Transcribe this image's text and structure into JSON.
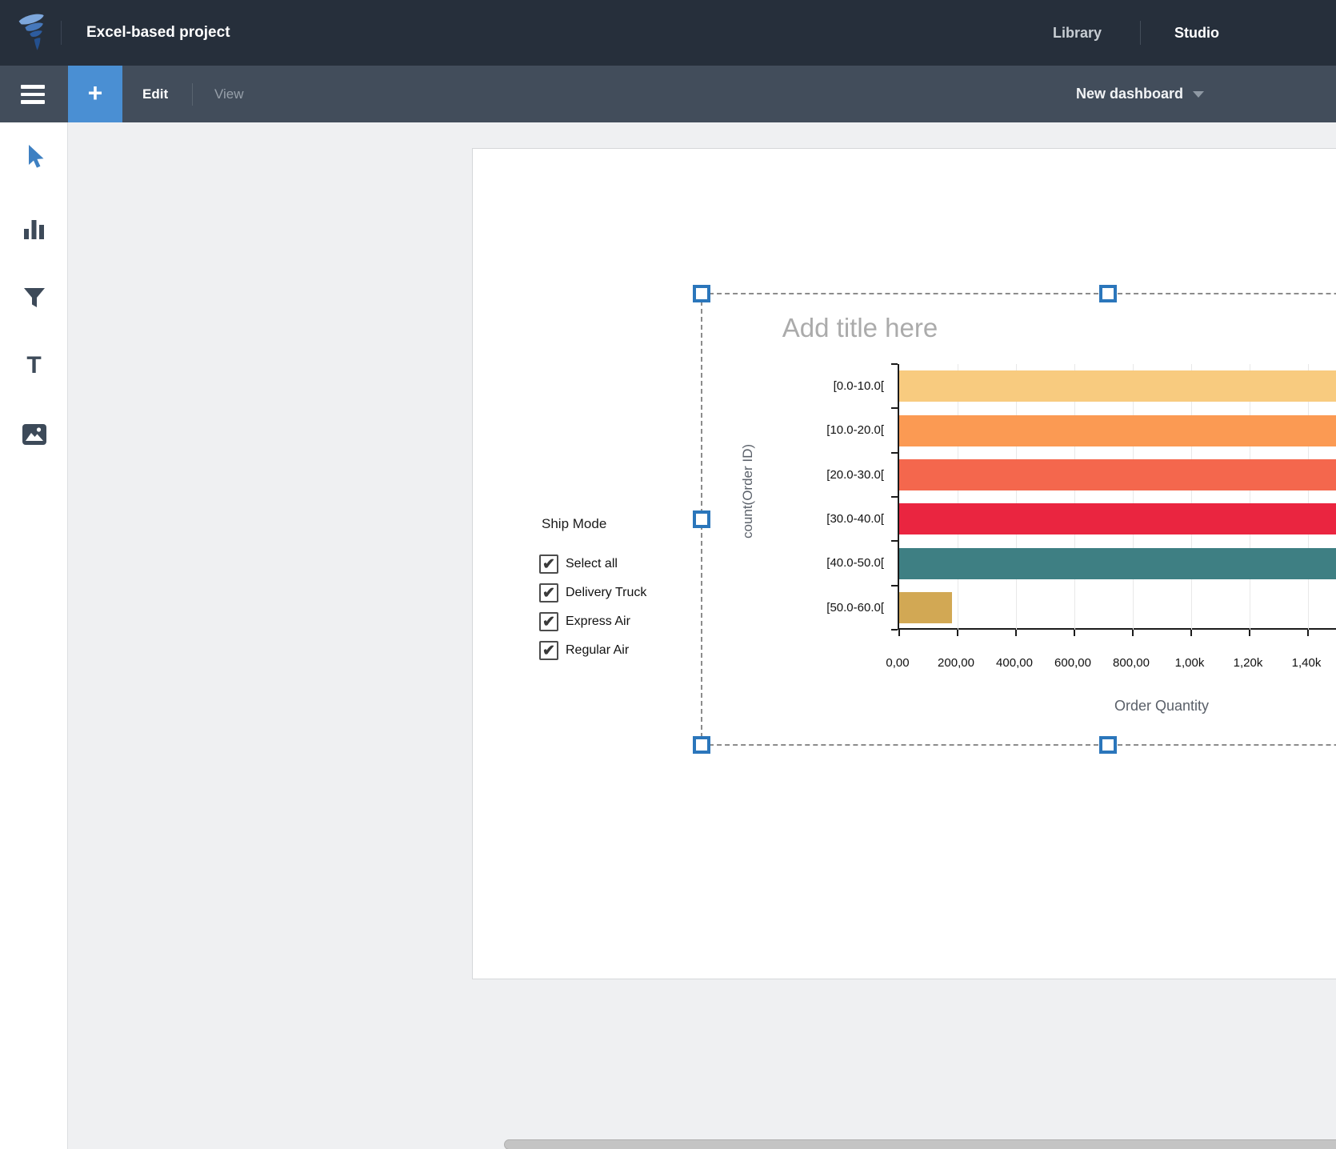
{
  "header": {
    "project_title": "Excel-based project",
    "nav": {
      "library": "Library",
      "studio": "Studio"
    }
  },
  "toolbar": {
    "add_label": "+",
    "edit_label": "Edit",
    "view_label": "View",
    "dashboard_name": "New dashboard"
  },
  "sidebar": {
    "tools": [
      {
        "name": "pointer-tool",
        "active": true
      },
      {
        "name": "chart-tool"
      },
      {
        "name": "filter-tool"
      },
      {
        "name": "text-tool",
        "glyph": "T"
      },
      {
        "name": "image-tool"
      }
    ]
  },
  "filter": {
    "title": "Ship Mode",
    "items": [
      {
        "label": "Select all",
        "checked": true
      },
      {
        "label": "Delivery Truck",
        "checked": true
      },
      {
        "label": "Express Air",
        "checked": true
      },
      {
        "label": "Regular Air",
        "checked": true
      }
    ],
    "check_glyph": "✔"
  },
  "chart_data": {
    "type": "bar",
    "orientation": "horizontal",
    "title": "Add title here",
    "title_is_placeholder": true,
    "categories": [
      "[0.0-10.0[",
      "[10.0-20.0[",
      "[20.0-30.0[",
      "[30.0-40.0[",
      "[40.0-50.0[",
      "[50.0-60.0["
    ],
    "values": [
      1500,
      1500,
      1500,
      1500,
      1500,
      180
    ],
    "clipped": [
      true,
      true,
      true,
      true,
      true,
      false
    ],
    "values_note": "First five bars run past the visible right edge of the screen; 1500 is the minimum value implied by the visible axis. Only the [50.0-60.0[ bar ends on screen at ~180.",
    "bar_colors": [
      "#F8CB7F",
      "#FB9A53",
      "#F4674D",
      "#EA2540",
      "#3E7F83",
      "#D2A854"
    ],
    "xlabel": "Order Quantity",
    "ylabel": "count(Order ID)",
    "xticks": {
      "values": [
        0,
        200,
        400,
        600,
        800,
        1000,
        1200,
        1400
      ],
      "labels": [
        "0,00",
        "200,00",
        "400,00",
        "600,00",
        "800,00",
        "1,00k",
        "1,20k",
        "1,40k"
      ]
    },
    "xlim": [
      0,
      1533
    ],
    "grid": "vertical-only"
  },
  "colors": {
    "topbar_bg": "#262f3b",
    "toolbar_bg": "#424d5b",
    "accent_blue": "#4a8fd3",
    "handle_blue": "#2b76bb",
    "canvas_bg": "#eff0f2",
    "icon_slate": "#3d4a59",
    "placeholder_gray": "#ababab"
  }
}
